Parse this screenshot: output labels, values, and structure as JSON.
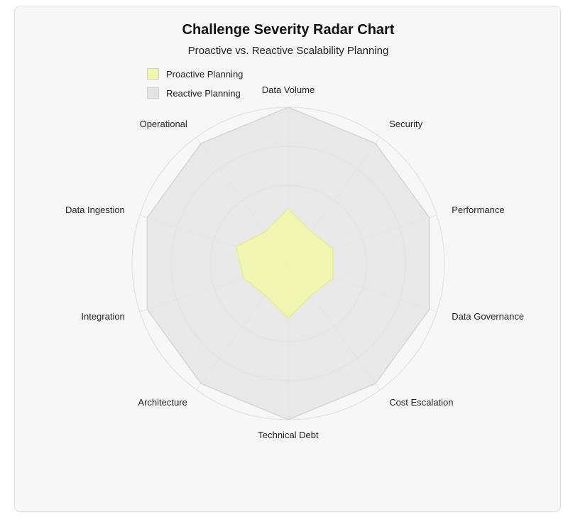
{
  "title": "Challenge Severity Radar Chart",
  "subtitle": "Proactive vs. Reactive Scalability Planning",
  "legend": [
    {
      "label": "Proactive Planning",
      "color": "#f2f7a8"
    },
    {
      "label": "Reactive Planning",
      "color": "#e3e3e3"
    }
  ],
  "chart_data": {
    "type": "radar",
    "categories": [
      "Data Volume",
      "Security",
      "Performance",
      "Data Governance",
      "Cost Escalation",
      "Technical Debt",
      "Architecture",
      "Integration",
      "Data Ingestion",
      "Operational"
    ],
    "rlim": [
      0,
      10
    ],
    "grid": true,
    "legend_position": "top-left",
    "series": [
      {
        "name": "Proactive Planning",
        "values": [
          3.5,
          2.5,
          3.0,
          3.0,
          2.5,
          3.5,
          2.5,
          3.0,
          3.5,
          2.5
        ],
        "fill": "#f2f7a8",
        "stroke": "#e8ef8c"
      },
      {
        "name": "Reactive Planning",
        "values": [
          10,
          9.5,
          9.5,
          9.5,
          9.5,
          10,
          9.5,
          9.5,
          9.5,
          9.5
        ],
        "fill": "#e3e3e3",
        "stroke": "#d6d6d6"
      }
    ]
  }
}
